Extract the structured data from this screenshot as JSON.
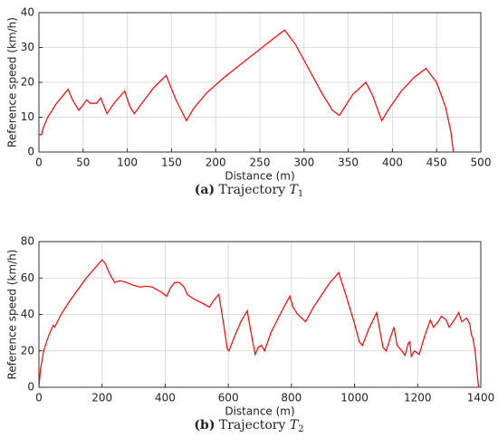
{
  "chart_data": [
    {
      "type": "line",
      "xlabel": "Distance (m)",
      "ylabel": "Reference speed (km/h)",
      "caption": {
        "label": "(a)",
        "text": "Trajectory",
        "symbol": "T",
        "subscript": "1"
      },
      "color": "#ff0000",
      "grid": true,
      "xlim": [
        0,
        500
      ],
      "xticks": [
        0,
        50,
        100,
        150,
        200,
        250,
        300,
        350,
        400,
        450,
        500
      ],
      "ylim": [
        0,
        40
      ],
      "yticks": [
        0,
        10,
        20,
        30,
        40
      ],
      "x": [
        0,
        3,
        5,
        10,
        20,
        33,
        38,
        45,
        50,
        54,
        58,
        65,
        70,
        77,
        85,
        97,
        103,
        108,
        115,
        130,
        144,
        155,
        167,
        175,
        190,
        210,
        230,
        250,
        265,
        278,
        290,
        305,
        320,
        332,
        340,
        345,
        355,
        370,
        378,
        385,
        388,
        395,
        410,
        425,
        438,
        450,
        460,
        466,
        469
      ],
      "values": [
        5,
        5,
        7,
        10,
        14,
        18,
        15,
        12,
        13.5,
        15,
        14,
        14,
        15.5,
        11,
        14,
        17.5,
        13,
        11,
        13.5,
        18.5,
        22,
        15,
        9,
        12.5,
        17,
        21.5,
        25.5,
        29.5,
        32.5,
        35,
        31,
        24,
        17,
        12,
        10.5,
        12.5,
        16.5,
        20,
        16,
        11,
        9,
        12,
        17.5,
        21.5,
        24,
        20,
        13,
        6,
        0
      ]
    },
    {
      "type": "line",
      "xlabel": "Distance (m)",
      "ylabel": "Reference speed (km/h)",
      "caption": {
        "label": "(b)",
        "text": "Trajectory",
        "symbol": "T",
        "subscript": "2"
      },
      "color": "#ff0000",
      "grid": true,
      "xlim": [
        0,
        1400
      ],
      "xticks": [
        0,
        200,
        400,
        600,
        800,
        1000,
        1200,
        1400
      ],
      "ylim": [
        0,
        80
      ],
      "yticks": [
        0,
        20,
        40,
        60,
        80
      ],
      "x": [
        0,
        5,
        15,
        30,
        45,
        50,
        70,
        100,
        150,
        200,
        210,
        225,
        240,
        255,
        270,
        300,
        320,
        340,
        360,
        390,
        405,
        415,
        430,
        445,
        460,
        470,
        490,
        520,
        540,
        555,
        570,
        585,
        597,
        602,
        620,
        640,
        660,
        670,
        685,
        695,
        705,
        715,
        735,
        770,
        795,
        805,
        820,
        845,
        870,
        920,
        950,
        970,
        1000,
        1015,
        1025,
        1045,
        1070,
        1090,
        1100,
        1115,
        1125,
        1135,
        1150,
        1160,
        1170,
        1175,
        1180,
        1190,
        1205,
        1220,
        1240,
        1250,
        1265,
        1275,
        1290,
        1300,
        1320,
        1330,
        1340,
        1355,
        1365,
        1370,
        1375,
        1382,
        1390,
        1393
      ],
      "values": [
        0,
        10,
        20,
        28,
        34,
        33,
        40,
        48,
        60,
        70,
        68,
        62,
        57.5,
        58.5,
        58,
        56,
        55,
        55.5,
        55,
        52,
        50,
        54,
        57.5,
        57.5,
        55,
        51,
        48.5,
        46,
        44,
        48,
        51,
        35,
        21,
        20,
        28,
        36,
        42,
        32,
        18,
        22,
        23,
        20,
        30,
        42,
        50,
        44,
        40,
        36,
        44,
        57,
        63,
        52,
        35,
        25,
        23,
        32,
        41,
        22,
        20,
        28,
        33,
        23,
        20,
        17.5,
        24,
        25,
        17,
        20,
        18,
        27,
        37,
        33,
        36,
        39,
        37,
        33,
        38,
        41,
        36,
        38,
        35,
        29,
        27,
        20,
        5,
        0
      ]
    }
  ]
}
